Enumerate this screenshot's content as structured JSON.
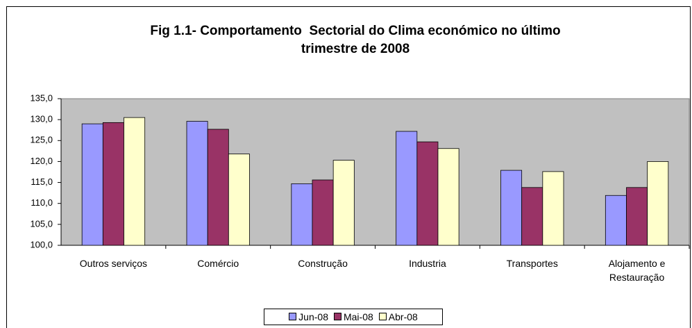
{
  "chart_data": {
    "type": "bar",
    "title": "Fig 1.1- Comportamento  Sectorial do Clima económico no último trimestre de 2008",
    "categories": [
      "Outros serviços",
      "Comércio",
      "Construção",
      "Industria",
      "Transportes",
      "Alojamento e Restauração"
    ],
    "series": [
      {
        "name": "Jun-08",
        "color": "#9999ff",
        "values": [
          129.0,
          129.6,
          114.7,
          127.2,
          117.9,
          111.9
        ]
      },
      {
        "name": "Mai-08",
        "color": "#993366",
        "values": [
          129.3,
          127.7,
          115.6,
          124.7,
          113.8,
          113.8
        ]
      },
      {
        "name": "Abr-08",
        "color": "#ffffcc",
        "values": [
          130.5,
          121.8,
          120.3,
          123.1,
          117.6,
          120.0
        ]
      }
    ],
    "ylim": [
      100,
      135
    ],
    "yticks": [
      {
        "value": 100,
        "label": "100,0"
      },
      {
        "value": 105,
        "label": "105,0"
      },
      {
        "value": 110,
        "label": "110,0"
      },
      {
        "value": 115,
        "label": "115,0"
      },
      {
        "value": 120,
        "label": "120,0"
      },
      {
        "value": 125,
        "label": "125,0"
      },
      {
        "value": 130,
        "label": "130,0"
      },
      {
        "value": 135,
        "label": "135,0"
      }
    ],
    "grid": false,
    "plot_background": "#c0c0c0",
    "legend": "bottom"
  }
}
